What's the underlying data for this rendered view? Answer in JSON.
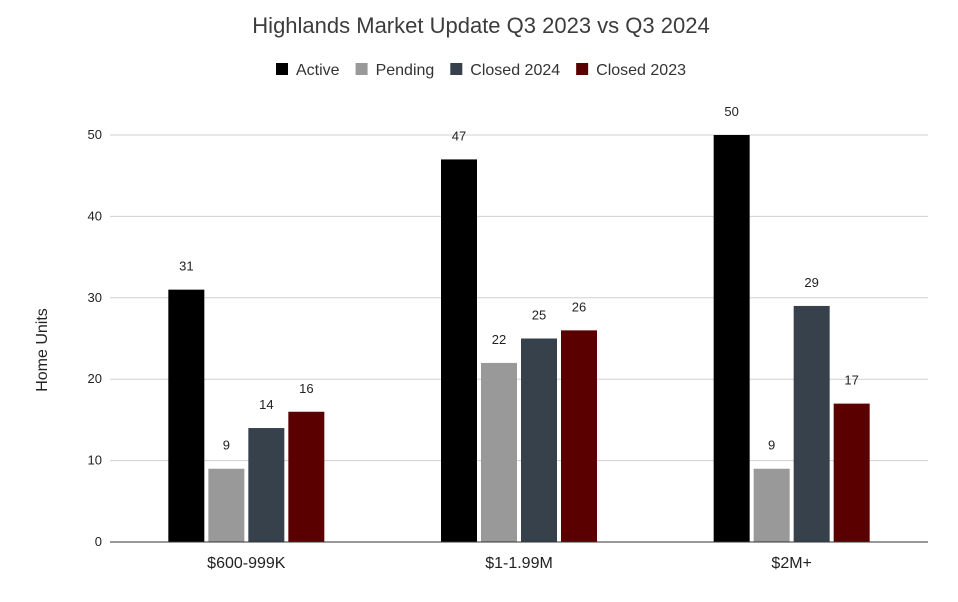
{
  "chart_data": {
    "type": "bar",
    "title": "Highlands Market Update Q3 2023 vs Q3 2024",
    "xlabel": "",
    "ylabel": "Home Units",
    "categories": [
      "$600-999K",
      "$1-1.99M",
      "$2M+"
    ],
    "ylim": [
      0,
      50
    ],
    "yticks": [
      "0",
      "10",
      "20",
      "30",
      "40",
      "50"
    ],
    "grid": true,
    "legend_position": "top",
    "series": [
      {
        "name": "Active",
        "color": "#000000",
        "values": [
          31,
          47,
          50
        ]
      },
      {
        "name": "Pending",
        "color": "#999999",
        "values": [
          9,
          22,
          9
        ]
      },
      {
        "name": "Closed 2024",
        "color": "#36414c",
        "values": [
          14,
          25,
          29
        ]
      },
      {
        "name": "Closed 2023",
        "color": "#5a0000",
        "values": [
          16,
          26,
          17
        ]
      }
    ]
  }
}
